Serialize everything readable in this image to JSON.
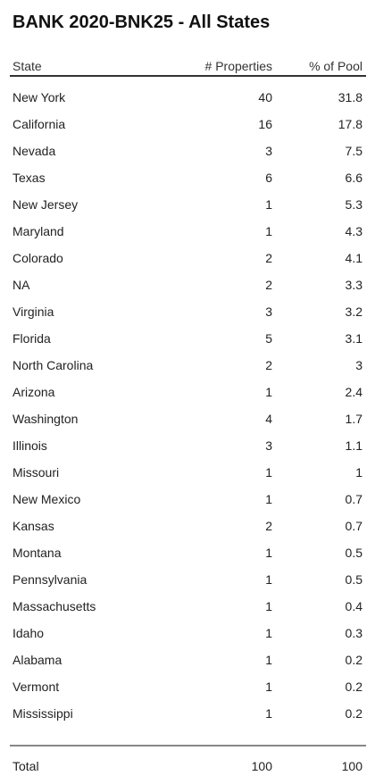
{
  "title": "BANK 2020-BNK25 - All States",
  "columns": {
    "state": "State",
    "properties": "# Properties",
    "pct_of_pool": "% of Pool"
  },
  "rows": [
    {
      "state": "New York",
      "properties": "40",
      "pct": "31.8"
    },
    {
      "state": "California",
      "properties": "16",
      "pct": "17.8"
    },
    {
      "state": "Nevada",
      "properties": "3",
      "pct": "7.5"
    },
    {
      "state": "Texas",
      "properties": "6",
      "pct": "6.6"
    },
    {
      "state": "New Jersey",
      "properties": "1",
      "pct": "5.3"
    },
    {
      "state": "Maryland",
      "properties": "1",
      "pct": "4.3"
    },
    {
      "state": "Colorado",
      "properties": "2",
      "pct": "4.1"
    },
    {
      "state": "NA",
      "properties": "2",
      "pct": "3.3"
    },
    {
      "state": "Virginia",
      "properties": "3",
      "pct": "3.2"
    },
    {
      "state": "Florida",
      "properties": "5",
      "pct": "3.1"
    },
    {
      "state": "North Carolina",
      "properties": "2",
      "pct": "3"
    },
    {
      "state": "Arizona",
      "properties": "1",
      "pct": "2.4"
    },
    {
      "state": "Washington",
      "properties": "4",
      "pct": "1.7"
    },
    {
      "state": "Illinois",
      "properties": "3",
      "pct": "1.1"
    },
    {
      "state": "Missouri",
      "properties": "1",
      "pct": "1"
    },
    {
      "state": "New Mexico",
      "properties": "1",
      "pct": "0.7"
    },
    {
      "state": "Kansas",
      "properties": "2",
      "pct": "0.7"
    },
    {
      "state": "Montana",
      "properties": "1",
      "pct": "0.5"
    },
    {
      "state": "Pennsylvania",
      "properties": "1",
      "pct": "0.5"
    },
    {
      "state": "Massachusetts",
      "properties": "1",
      "pct": "0.4"
    },
    {
      "state": "Idaho",
      "properties": "1",
      "pct": "0.3"
    },
    {
      "state": "Alabama",
      "properties": "1",
      "pct": "0.2"
    },
    {
      "state": "Vermont",
      "properties": "1",
      "pct": "0.2"
    },
    {
      "state": "Mississippi",
      "properties": "1",
      "pct": "0.2"
    }
  ],
  "total": {
    "label": "Total",
    "properties": "100",
    "pct": "100"
  }
}
